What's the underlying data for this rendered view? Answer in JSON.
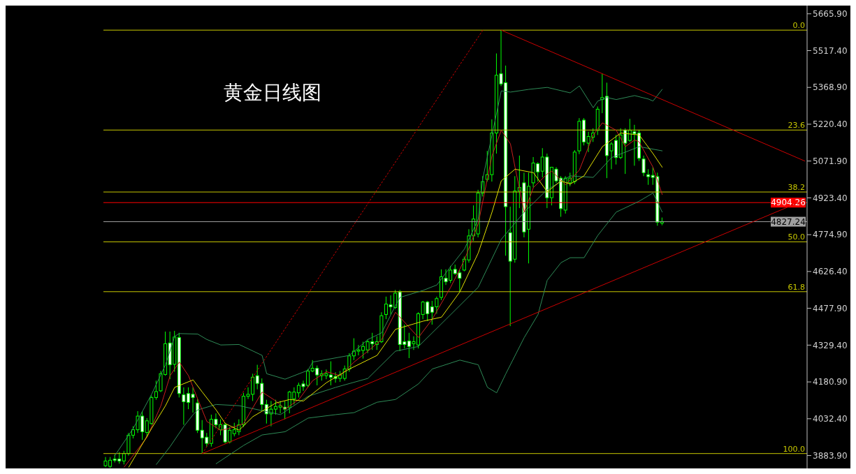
{
  "chart_data": {
    "type": "candlestick",
    "title": "黄金日线图",
    "categories": [
      null,
      null,
      null,
      null,
      null,
      null,
      null,
      null,
      null,
      null,
      null,
      null,
      null,
      null,
      null,
      null,
      null,
      null,
      null,
      null,
      null,
      null,
      null,
      null,
      null,
      null,
      null,
      null,
      null,
      null,
      null,
      null,
      null,
      null,
      null,
      null,
      null,
      null,
      null,
      null,
      null,
      null,
      null,
      null,
      null,
      null,
      null,
      null,
      null,
      null,
      null,
      null,
      null,
      null,
      null,
      null,
      null,
      null,
      null,
      null,
      null,
      null,
      null,
      null,
      null,
      null,
      null,
      null,
      null,
      null,
      null,
      null,
      null,
      null,
      null,
      null,
      null,
      null,
      null,
      null,
      null,
      null,
      null,
      null,
      null,
      null,
      null,
      null,
      null,
      null,
      null,
      null,
      null,
      null,
      null,
      null,
      null,
      null,
      null,
      null,
      null,
      null,
      null,
      null,
      null,
      null,
      null,
      null,
      null,
      null,
      null,
      null,
      null,
      null,
      null,
      null,
      null,
      null,
      null,
      null,
      null,
      null,
      null,
      null,
      null,
      null,
      null,
      null,
      null,
      null,
      null,
      null,
      null,
      null,
      null,
      null,
      null,
      null,
      null,
      null,
      null,
      null,
      null,
      null,
      null,
      null,
      null,
      null,
      null,
      null,
      null,
      null,
      null
    ],
    "series": [
      {
        "type": "line",
        "color": "#2e8b57",
        "values": [
          null,
          null,
          3884,
          null,
          null,
          null,
          3994,
          null,
          null,
          null,
          4132,
          null,
          null,
          4250,
          null,
          4365,
          4376,
          null,
          null,
          null,
          4374,
          null,
          4352,
          null,
          null,
          4330,
          null,
          null,
          null,
          4332,
          null,
          null,
          null,
          null,
          4288,
          4214,
          null,
          null,
          null,
          4192,
          null,
          null,
          null,
          null,
          4228,
          4261,
          null,
          null,
          null,
          null,
          null,
          null,
          null,
          4288,
          null,
          null,
          null,
          4352,
          null,
          null,
          4379,
          null,
          null,
          4489,
          4522,
          null,
          null,
          null,
          null,
          4550,
          null,
          null,
          4572,
          null,
          null,
          4646,
          null,
          null,
          4717,
          null,
          null,
          4838,
          5003,
          null,
          5177,
          null,
          5355,
          null,
          5350,
          null,
          null,
          null,
          5361,
          null,
          null,
          null,
          5369,
          null,
          null,
          null,
          null,
          5347,
          null,
          5375,
          null,
          null,
          5287,
          5314,
          null,
          5328,
          null,
          5320,
          null,
          null,
          null,
          5336,
          null,
          null,
          5322,
          5314,
          null,
          5361,
          null,
          null,
          null,
          null,
          null,
          null,
          null,
          null,
          null,
          null,
          null,
          null,
          null,
          null,
          null,
          null,
          null,
          null,
          null,
          null,
          null,
          null,
          null,
          null,
          null,
          null,
          null,
          null,
          null,
          null,
          null
        ]
      },
      {
        "type": "line",
        "color": "#2e8b57",
        "values": [
          null,
          null,
          null,
          null,
          null,
          null,
          null,
          null,
          null,
          null,
          null,
          null,
          null,
          null,
          null,
          null,
          null,
          null,
          null,
          null,
          null,
          null,
          null,
          null,
          3851,
          null,
          null,
          null,
          null,
          null,
          3925,
          null,
          null,
          null,
          3967,
          null,
          null,
          null,
          null,
          3980,
          null,
          null,
          null,
          null,
          4035,
          null,
          null,
          null,
          null,
          null,
          4049,
          null,
          null,
          null,
          4057,
          null,
          null,
          null,
          null,
          4099,
          null,
          null,
          null,
          4110,
          null,
          null,
          null,
          null,
          4173,
          null,
          null,
          4233,
          null,
          null,
          null,
          null,
          null,
          4269,
          null,
          null,
          null,
          4250,
          null,
          4159,
          null,
          4137,
          null,
          4214,
          null,
          null,
          null,
          4360,
          null,
          null,
          4453,
          null,
          4591,
          null,
          null,
          4662,
          null,
          4682,
          null,
          null,
          4682,
          null,
          null,
          4772,
          null,
          null,
          null,
          4866,
          null,
          null,
          null,
          null,
          4910,
          null,
          null,
          4943,
          null,
          4866,
          null,
          null,
          null,
          null,
          null,
          null,
          null,
          null,
          null,
          null,
          null,
          null,
          null,
          null,
          null,
          null,
          null,
          null,
          null,
          null,
          null,
          null,
          null,
          null,
          null,
          null,
          null,
          null,
          null,
          null,
          null
        ]
      },
      {
        "type": "line",
        "color": "#2e8b57",
        "values": [
          null,
          null,
          null,
          null,
          null,
          null,
          null,
          null,
          null,
          null,
          null,
          3848,
          null,
          null,
          3920,
          null,
          null,
          4002,
          null,
          4049,
          4068,
          null,
          null,
          null,
          4090,
          null,
          null,
          null,
          null,
          4085,
          null,
          null,
          null,
          null,
          null,
          null,
          null,
          null,
          4049,
          null,
          null,
          null,
          null,
          null,
          4123,
          null,
          null,
          null,
          null,
          null,
          4159,
          null,
          null,
          null,
          null,
          null,
          null,
          4195,
          null,
          null,
          null,
          null,
          null,
          4305,
          null,
          null,
          null,
          null,
          4324,
          null,
          null,
          null,
          null,
          null,
          4434,
          null,
          null,
          null,
          null,
          null,
          null,
          4563,
          null,
          null,
          null,
          null,
          4756,
          null,
          null,
          null,
          null,
          4866,
          null,
          null,
          null,
          null,
          4957,
          null,
          null,
          null,
          null,
          5012,
          null,
          null,
          null,
          null,
          5006,
          null,
          null,
          null,
          5086,
          null,
          null,
          null,
          null,
          null,
          5130,
          null,
          null,
          null,
          null,
          5113,
          null,
          null,
          null,
          null,
          null,
          null,
          null,
          null,
          null,
          null,
          null,
          null,
          null,
          null,
          null,
          null,
          null,
          null,
          null,
          null,
          null,
          null,
          null,
          null,
          null,
          null,
          null,
          null,
          null,
          null,
          null
        ]
      },
      {
        "type": "line",
        "color": "#c81e1e",
        "values": [
          null,
          null,
          null,
          null,
          3837,
          null,
          null,
          null,
          null,
          3958,
          null,
          null,
          4085,
          null,
          4206,
          null,
          4261,
          null,
          4206,
          null,
          4112,
          null,
          4021,
          null,
          null,
          3986,
          null,
          3994,
          null,
          null,
          4013,
          null,
          4077,
          null,
          4140,
          null,
          null,
          4104,
          null,
          4071,
          null,
          null,
          4110,
          null,
          null,
          4186,
          null,
          null,
          4222,
          null,
          null,
          4206,
          null,
          null,
          4261,
          null,
          null,
          4305,
          null,
          null,
          4352,
          null,
          null,
          4462,
          null,
          null,
          null,
          null,
          4360,
          null,
          null,
          4434,
          null,
          null,
          null,
          4563,
          null,
          null,
          4673,
          null,
          null,
          4819,
          null,
          null,
          5094,
          null,
          5196,
          null,
          5141,
          5047,
          null,
          4866,
          null,
          4965,
          null,
          null,
          5020,
          5031,
          null,
          null,
          4976,
          null,
          null,
          5036,
          null,
          null,
          5177,
          null,
          5226,
          null,
          null,
          5196,
          null,
          5130,
          null,
          5157,
          5149,
          null,
          null,
          5047,
          null,
          4937,
          null,
          null,
          null,
          null,
          null,
          null,
          null,
          null,
          null,
          null,
          null,
          null,
          null,
          null,
          null,
          null,
          null,
          null,
          null,
          null,
          null,
          null,
          null,
          null,
          null,
          null,
          null,
          null,
          null,
          null,
          null
        ]
      },
      {
        "type": "line",
        "color": "#e0e000",
        "values": [
          null,
          null,
          null,
          null,
          null,
          3837,
          null,
          null,
          null,
          null,
          3994,
          null,
          null,
          4085,
          null,
          4159,
          null,
          null,
          null,
          4189,
          null,
          4140,
          null,
          null,
          4068,
          null,
          4013,
          null,
          null,
          3986,
          null,
          null,
          4041,
          null,
          null,
          null,
          null,
          4096,
          null,
          null,
          4110,
          null,
          null,
          4104,
          null,
          null,
          null,
          null,
          4178,
          null,
          null,
          null,
          null,
          4233,
          null,
          null,
          null,
          null,
          null,
          4288,
          null,
          null,
          null,
          4393,
          null,
          null,
          null,
          null,
          null,
          4426,
          null,
          null,
          null,
          4442,
          null,
          null,
          null,
          4544,
          null,
          null,
          null,
          4701,
          null,
          null,
          4866,
          null,
          4992,
          null,
          null,
          5039,
          null,
          null,
          null,
          5025,
          null,
          null,
          4948,
          null,
          null,
          4992,
          null,
          4979,
          null,
          null,
          5012,
          null,
          null,
          null,
          5130,
          null,
          null,
          null,
          5185,
          null,
          null,
          null,
          5177,
          null,
          null,
          5102,
          null,
          5047,
          null,
          null,
          null,
          null,
          null,
          null,
          null,
          null,
          null,
          null,
          null,
          null,
          null,
          null,
          null,
          null,
          null,
          null,
          null,
          null,
          null,
          null,
          null,
          null,
          null,
          null,
          null,
          null,
          null,
          null,
          null
        ]
      },
      {
        "type": "line",
        "color": "#cc0000",
        "values": [
          null,
          null,
          null,
          null,
          null,
          null,
          null,
          null,
          null,
          null,
          null,
          null,
          null,
          null,
          null,
          null,
          null,
          null,
          null,
          null,
          null,
          null,
          null,
          null,
          null,
          null,
          null,
          null,
          null,
          null,
          null,
          null,
          null,
          null,
          null,
          null,
          null,
          null,
          null,
          null,
          null,
          null,
          null,
          null,
          null,
          null,
          null,
          null,
          null,
          null,
          null,
          null,
          null,
          null,
          null,
          null,
          null,
          null,
          null,
          null,
          null,
          null,
          null,
          null,
          null,
          null,
          null,
          null,
          null,
          null,
          null,
          null,
          null,
          null,
          null,
          null,
          null,
          null,
          null,
          null,
          null,
          null,
          null,
          null,
          null,
          null,
          5600,
          null,
          null,
          null,
          null,
          null,
          null,
          null,
          null,
          null,
          null,
          null,
          null,
          null,
          null,
          null,
          null,
          null,
          null,
          null,
          null,
          null,
          null,
          null,
          null,
          null,
          null,
          null,
          null,
          null,
          null,
          null,
          null,
          null,
          null,
          null,
          null,
          null,
          null,
          null,
          null,
          null,
          null,
          null,
          null,
          null,
          null,
          null,
          null,
          null,
          null,
          null,
          null,
          null,
          null,
          null,
          null,
          null,
          null,
          null,
          null,
          null,
          null,
          null,
          null,
          null,
          5072
        ]
      },
      {
        "type": "line",
        "color": "#cc0000",
        "values": [
          null,
          null,
          null,
          null,
          null,
          null,
          null,
          null,
          null,
          null,
          null,
          null,
          null,
          null,
          null,
          null,
          null,
          null,
          null,
          null,
          null,
          3892,
          null,
          null,
          null,
          null,
          null,
          null,
          null,
          null,
          null,
          null,
          null,
          null,
          null,
          null,
          null,
          null,
          null,
          null,
          null,
          null,
          null,
          null,
          null,
          null,
          null,
          null,
          null,
          null,
          null,
          null,
          null,
          null,
          null,
          null,
          null,
          null,
          null,
          null,
          null,
          null,
          null,
          null,
          null,
          null,
          null,
          null,
          null,
          null,
          null,
          null,
          null,
          null,
          null,
          null,
          null,
          null,
          null,
          null,
          null,
          null,
          null,
          null,
          null,
          null,
          null,
          null,
          null,
          null,
          null,
          null,
          null,
          null,
          null,
          null,
          null,
          null,
          null,
          null,
          null,
          null,
          null,
          null,
          null,
          null,
          null,
          null,
          null,
          null,
          null,
          null,
          null,
          null,
          null,
          null,
          null,
          null,
          null,
          null,
          null,
          null,
          null,
          null,
          null,
          null,
          null,
          null,
          null,
          null,
          null,
          null,
          null,
          null,
          null,
          null,
          null,
          null,
          null,
          null,
          null,
          null,
          null,
          null,
          null,
          null,
          null,
          null,
          null,
          null,
          null,
          null,
          4915
        ]
      },
      {
        "type": "line",
        "color": "#cc0000",
        "line_style": "dotted",
        "values": [
          null,
          null,
          null,
          null,
          null,
          null,
          null,
          null,
          null,
          null,
          null,
          null,
          null,
          null,
          null,
          null,
          null,
          null,
          null,
          null,
          null,
          3892,
          null,
          null,
          null,
          null,
          null,
          null,
          null,
          null,
          null,
          null,
          null,
          null,
          null,
          null,
          null,
          null,
          null,
          null,
          null,
          null,
          null,
          null,
          null,
          null,
          null,
          null,
          null,
          null,
          null,
          null,
          null,
          null,
          null,
          null,
          null,
          null,
          null,
          null,
          null,
          null,
          null,
          null,
          null,
          null,
          null,
          null,
          null,
          null,
          null,
          null,
          null,
          null,
          null,
          null,
          null,
          null,
          null,
          null,
          null,
          null,
          5600,
          null,
          null,
          null,
          null,
          null,
          null,
          null,
          null,
          null,
          null,
          null,
          null,
          null,
          null,
          null,
          null,
          null,
          null,
          null,
          null,
          null,
          null,
          null,
          null,
          null,
          null,
          null,
          null,
          null,
          null,
          null,
          null,
          null,
          null,
          null,
          null,
          null,
          null,
          null,
          null,
          null,
          null,
          null,
          null,
          null,
          null,
          null,
          null,
          null,
          null,
          null,
          null,
          null,
          null,
          null,
          null,
          null,
          null,
          null,
          null,
          null,
          null,
          null,
          null,
          null,
          null,
          null,
          null,
          null,
          null
        ]
      },
      {
        "type": "candlestick",
        "color": "#00ff00",
        "ohlc": [
          [
            3843,
            3878,
            3837,
            3862
          ],
          [
            3840,
            3878,
            3834,
            3865
          ],
          [
            3870,
            3889,
            3856,
            3865
          ],
          [
            3870,
            3898,
            3851,
            3862
          ],
          [
            3862,
            3903,
            3848,
            3892
          ],
          [
            3892,
            3975,
            3884,
            3966
          ],
          [
            3966,
            4002,
            3953,
            3988
          ],
          [
            3988,
            4063,
            3975,
            4043
          ],
          [
            4043,
            4063,
            3947,
            3980
          ],
          [
            3977,
            4035,
            3958,
            4024
          ],
          [
            4013,
            4126,
            4008,
            4118
          ],
          [
            4118,
            4186,
            4109,
            4142
          ],
          [
            4145,
            4225,
            4140,
            4214
          ],
          [
            4211,
            4384,
            4206,
            4335
          ],
          [
            4338,
            4384,
            4192,
            4250
          ],
          [
            4252,
            4387,
            4222,
            4362
          ],
          [
            4360,
            4379,
            4118,
            4134
          ],
          [
            4129,
            4159,
            4008,
            4101
          ],
          [
            4134,
            4159,
            4071,
            4098
          ],
          [
            4131,
            4159,
            4057,
            4118
          ],
          [
            4096,
            4112,
            3975,
            3986
          ],
          [
            3986,
            4027,
            3892,
            3955
          ],
          [
            3958,
            3975,
            3920,
            3933
          ],
          [
            3933,
            4049,
            3920,
            4030
          ],
          [
            4030,
            4054,
            3994,
            4008
          ],
          [
            3988,
            4030,
            3966,
            4008
          ],
          [
            4008,
            4016,
            3933,
            3939
          ],
          [
            3939,
            3999,
            3933,
            3986
          ],
          [
            3972,
            4016,
            3961,
            3988
          ],
          [
            3980,
            4030,
            3966,
            4008
          ],
          [
            4008,
            4137,
            3999,
            4123
          ],
          [
            4123,
            4159,
            4112,
            4131
          ],
          [
            4131,
            4214,
            4104,
            4200
          ],
          [
            4206,
            4250,
            4151,
            4175
          ],
          [
            4175,
            4195,
            4063,
            4090
          ],
          [
            4090,
            4109,
            4013,
            4052
          ],
          [
            4052,
            4104,
            4002,
            4071
          ],
          [
            4071,
            4109,
            4049,
            4082
          ],
          [
            4079,
            4104,
            4054,
            4085
          ],
          [
            4079,
            4104,
            4030,
            4071
          ],
          [
            4077,
            4145,
            4054,
            4140
          ],
          [
            4112,
            4159,
            4090,
            4140
          ],
          [
            4137,
            4178,
            4118,
            4167
          ],
          [
            4173,
            4186,
            4145,
            4162
          ],
          [
            4167,
            4233,
            4159,
            4225
          ],
          [
            4225,
            4269,
            4220,
            4236
          ],
          [
            4236,
            4247,
            4167,
            4209
          ],
          [
            4206,
            4228,
            4186,
            4214
          ],
          [
            4206,
            4231,
            4192,
            4214
          ],
          [
            4209,
            4264,
            4167,
            4200
          ],
          [
            4203,
            4220,
            4178,
            4195
          ],
          [
            4195,
            4225,
            4181,
            4209
          ],
          [
            4195,
            4247,
            4186,
            4233
          ],
          [
            4233,
            4297,
            4222,
            4286
          ],
          [
            4286,
            4357,
            4269,
            4305
          ],
          [
            4305,
            4330,
            4288,
            4310
          ],
          [
            4308,
            4343,
            4275,
            4324
          ],
          [
            4310,
            4352,
            4297,
            4343
          ],
          [
            4343,
            4379,
            4310,
            4335
          ],
          [
            4332,
            4365,
            4310,
            4343
          ],
          [
            4343,
            4462,
            4338,
            4448
          ],
          [
            4453,
            4525,
            4434,
            4495
          ],
          [
            4492,
            4530,
            4453,
            4484
          ],
          [
            4481,
            4552,
            4475,
            4539
          ],
          [
            4544,
            4552,
            4305,
            4332
          ],
          [
            4343,
            4412,
            4316,
            4332
          ],
          [
            4346,
            4379,
            4277,
            4324
          ],
          [
            4335,
            4365,
            4310,
            4343
          ],
          [
            4330,
            4462,
            4316,
            4456
          ],
          [
            4453,
            4508,
            4434,
            4503
          ],
          [
            4503,
            4508,
            4426,
            4456
          ],
          [
            4484,
            4508,
            4412,
            4462
          ],
          [
            4484,
            4525,
            4456,
            4517
          ],
          [
            4522,
            4635,
            4511,
            4605
          ],
          [
            4599,
            4635,
            4572,
            4585
          ],
          [
            4591,
            4649,
            4580,
            4632
          ],
          [
            4635,
            4654,
            4613,
            4618
          ],
          [
            4621,
            4632,
            4544,
            4599
          ],
          [
            4632,
            4687,
            4627,
            4676
          ],
          [
            4673,
            4797,
            4662,
            4770
          ],
          [
            4770,
            4893,
            4750,
            4838
          ],
          [
            4778,
            4956,
            4764,
            4943
          ],
          [
            4943,
            5011,
            4929,
            4989
          ],
          [
            4998,
            5113,
            4989,
            5017
          ],
          [
            5017,
            5240,
            4989,
            5185
          ],
          [
            5185,
            5506,
            5102,
            5418
          ],
          [
            5424,
            5600,
            5374,
            5383
          ],
          [
            5388,
            5457,
            4690,
            4888
          ],
          [
            4783,
            4888,
            4406,
            4668
          ],
          [
            4676,
            5011,
            4662,
            4951
          ],
          [
            4951,
            5094,
            4882,
            4965
          ],
          [
            4984,
            5025,
            4764,
            4786
          ],
          [
            4797,
            5025,
            4659,
            4970
          ],
          [
            4984,
            5088,
            4965,
            5064
          ],
          [
            5061,
            5067,
            4989,
            5028
          ],
          [
            5031,
            5124,
            5006,
            5088
          ],
          [
            5088,
            5102,
            4882,
            4924
          ],
          [
            4924,
            5047,
            4893,
            5047
          ],
          [
            5039,
            5047,
            4984,
            4992
          ],
          [
            5003,
            5011,
            4847,
            4880
          ],
          [
            4874,
            5011,
            4860,
            5003
          ],
          [
            4984,
            5025,
            4970,
            5003
          ],
          [
            4989,
            5116,
            4979,
            5108
          ],
          [
            5113,
            5245,
            5100,
            5232
          ],
          [
            5237,
            5245,
            5135,
            5149
          ],
          [
            5144,
            5190,
            5108,
            5171
          ],
          [
            5168,
            5204,
            5149,
            5185
          ],
          [
            5196,
            5292,
            5177,
            5281
          ],
          [
            5320,
            5424,
            5265,
            5328
          ],
          [
            5333,
            5388,
            5003,
            5094
          ],
          [
            5113,
            5149,
            5039,
            5141
          ],
          [
            5155,
            5177,
            5058,
            5086
          ],
          [
            5086,
            5204,
            5080,
            5177
          ],
          [
            5196,
            5204,
            5020,
            5144
          ],
          [
            5155,
            5242,
            5149,
            5196
          ],
          [
            5190,
            5218,
            5053,
            5182
          ],
          [
            5185,
            5198,
            5072,
            5083
          ],
          [
            5080,
            5094,
            5011,
            5025
          ],
          [
            5017,
            5039,
            4976,
            5009
          ],
          [
            5014,
            5047,
            4976,
            5006
          ],
          [
            5009,
            5025,
            4811,
            4825
          ],
          [
            4822,
            4844,
            4813,
            4828
          ],
          null,
          null,
          null,
          null,
          null,
          null,
          null,
          null,
          null,
          null,
          null,
          null,
          null,
          null,
          null,
          null,
          null,
          null,
          null,
          null,
          null,
          null,
          null,
          null,
          null,
          null,
          null,
          null,
          null,
          null,
          null
        ]
      }
    ],
    "ylim": [
      3832,
      5699
    ],
    "yticks": [
      {
        "value": 3883.9,
        "label": "3883.90"
      },
      {
        "value": 4032.4,
        "label": "4032.40"
      },
      {
        "value": 4180.9,
        "label": "4180.90"
      },
      {
        "value": 4329.4,
        "label": "4329.40"
      },
      {
        "value": 4477.9,
        "label": "4477.90"
      },
      {
        "value": 4626.4,
        "label": "4626.40"
      },
      {
        "value": 4774.9,
        "label": "4774.90"
      },
      {
        "value": 4923.4,
        "label": "4923.40"
      },
      {
        "value": 5071.9,
        "label": "5071.90"
      },
      {
        "value": 5220.4,
        "label": "5220.40"
      },
      {
        "value": 5368.9,
        "label": "5368.90"
      },
      {
        "value": 5517.4,
        "label": "5517.40"
      },
      {
        "value": 5665.9,
        "label": "5665.90"
      }
    ],
    "ref_lines": [
      {
        "axis": "y",
        "value": 5600,
        "color": "#c8c800"
      },
      {
        "axis": "y",
        "value": 5197,
        "color": "#c8c800"
      },
      {
        "axis": "y",
        "value": 4947,
        "color": "#c8c800"
      },
      {
        "axis": "y",
        "value": 4746,
        "color": "#c8c800"
      },
      {
        "axis": "y",
        "value": 4545,
        "color": "#c8c800"
      },
      {
        "axis": "y",
        "value": 3892,
        "color": "#c8c800"
      },
      {
        "axis": "y",
        "value": 4904.26,
        "label": "4904.26",
        "color": "#ff0000"
      },
      {
        "axis": "y",
        "value": 4827.24,
        "label": "4827.24",
        "color": "#a0a0a0"
      }
    ],
    "annotations": [
      {
        "text": "0.0",
        "y": 5600
      },
      {
        "text": "23.6",
        "y": 5197
      },
      {
        "text": "38.2",
        "y": 4947
      },
      {
        "text": "50.0",
        "y": 4746
      },
      {
        "text": "61.8",
        "y": 4545
      },
      {
        "text": "100.0",
        "y": 3892
      }
    ],
    "tick_labels": "y",
    "legend": false,
    "grid": false,
    "marker": "none"
  }
}
